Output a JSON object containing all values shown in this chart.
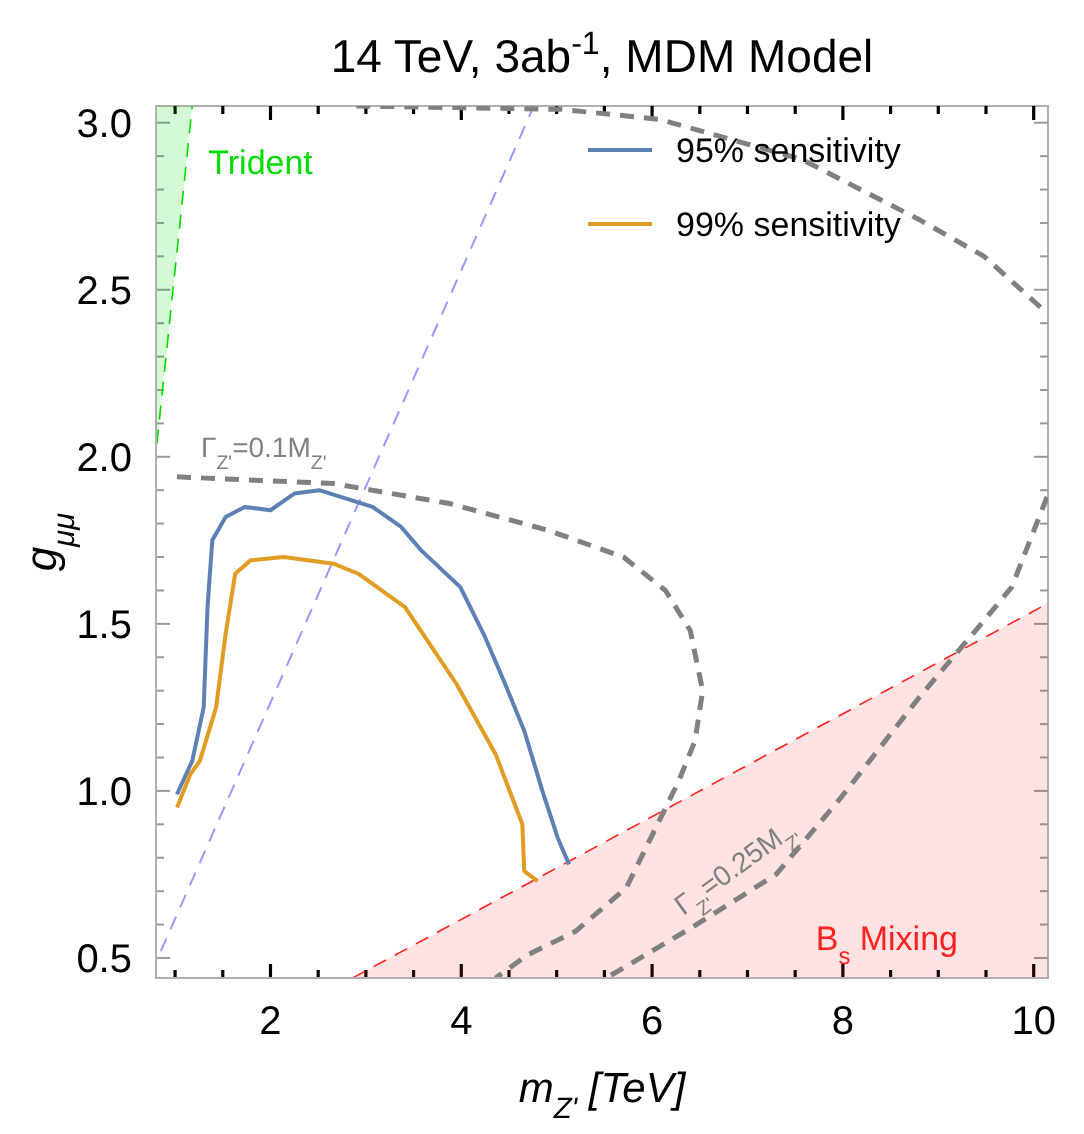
{
  "chart_data": {
    "type": "line",
    "title": "14 TeV, 3ab$^{-1}$, MDM Model",
    "xlabel": "m$_{Z'}$ [TeV]",
    "ylabel": "g$_{μμ}$",
    "xlim": [
      0.8,
      10.15
    ],
    "ylim": [
      0.44,
      3.05
    ],
    "xticks": [
      {
        "value": 1,
        "label": null
      },
      {
        "value": 1.5,
        "label": null
      },
      2,
      {
        "value": 2.5,
        "label": null
      },
      {
        "value": 3,
        "label": null
      },
      {
        "value": 3.5,
        "label": null
      },
      4,
      {
        "value": 4.5,
        "label": null
      },
      {
        "value": 5,
        "label": null
      },
      {
        "value": 5.5,
        "label": null
      },
      6,
      {
        "value": 6.5,
        "label": null
      },
      {
        "value": 7,
        "label": null
      },
      {
        "value": 7.5,
        "label": null
      },
      8,
      {
        "value": 8.5,
        "label": null
      },
      {
        "value": 9,
        "label": null
      },
      {
        "value": 9.5,
        "label": null
      },
      10
    ],
    "yticks": [
      0.5,
      {
        "value": 0.6,
        "label": null
      },
      {
        "value": 0.7,
        "label": null
      },
      {
        "value": 0.8,
        "label": null
      },
      {
        "value": 0.9,
        "label": null
      },
      {
        "value": 1,
        "label": "1.0"
      },
      {
        "value": 1.1,
        "label": null
      },
      {
        "value": 1.2,
        "label": null
      },
      {
        "value": 1.3,
        "label": null
      },
      {
        "value": 1.4,
        "label": null
      },
      1.5,
      {
        "value": 1.6,
        "label": null
      },
      {
        "value": 1.7,
        "label": null
      },
      {
        "value": 1.8,
        "label": null
      },
      {
        "value": 1.9,
        "label": null
      },
      {
        "value": 2,
        "label": "2.0"
      },
      {
        "value": 2.1,
        "label": null
      },
      {
        "value": 2.2,
        "label": null
      },
      {
        "value": 2.3,
        "label": null
      },
      {
        "value": 2.4,
        "label": null
      },
      2.5,
      {
        "value": 2.6,
        "label": null
      },
      {
        "value": 2.7,
        "label": null
      },
      {
        "value": 2.8,
        "label": null
      },
      {
        "value": 2.9,
        "label": null
      },
      {
        "value": 3,
        "label": "3.0"
      }
    ],
    "grid": false,
    "legend": "top right",
    "series": [
      {
        "name": "Trident",
        "color": "#00dd00",
        "line_style": "dashed",
        "x": [
          0.81,
          1.0,
          1.18
        ],
        "values": [
          2.04,
          2.56,
          3.05
        ],
        "lower": [
          2.04,
          2.56,
          3.05
        ],
        "upper": [
          3.05,
          3.05,
          3.05
        ]
      },
      {
        "name": "B$_{s}$ Mixing",
        "type": "area",
        "color": "#ff2020",
        "line_style": "dashed",
        "x": [
          2.86,
          10.14
        ],
        "values": [
          0.44,
          1.56
        ]
      },
      {
        "color": "#9999ff",
        "line_style": "dashed",
        "x": [
          0.85,
          4.76
        ],
        "values": [
          0.52,
          3.05
        ]
      },
      {
        "name": "Γ$_{Z'}$=0.1M$_{Z'}$",
        "color": "#808080",
        "line_style": "dashed",
        "x": [
          1.02,
          2.66,
          3.88,
          4.91,
          5.7,
          6.14,
          6.4,
          6.53,
          6.45,
          6.28,
          5.73,
          5.2,
          4.7,
          4.36
        ],
        "values": [
          1.94,
          1.92,
          1.86,
          1.78,
          1.7,
          1.6,
          1.48,
          1.3,
          1.15,
          1.03,
          0.71,
          0.58,
          0.51,
          0.44
        ]
      },
      {
        "color": "#808080",
        "line_style": "dashed",
        "x": [
          2.9,
          5.05,
          6.08,
          7.57,
          8.8,
          9.48,
          10.14
        ],
        "values": [
          3.05,
          3.04,
          3.01,
          2.89,
          2.71,
          2.6,
          2.43
        ]
      },
      {
        "name": "Γ$_{Z'}$=0.25M$_{Z'}$",
        "color": "#808080",
        "line_style": "dashed",
        "x": [
          10.14,
          9.77,
          9.48,
          8.8,
          7.98,
          7.3,
          6.41,
          5.52
        ],
        "values": [
          1.88,
          1.61,
          1.51,
          1.28,
          0.98,
          0.75,
          0.59,
          0.44
        ]
      },
      {
        "name": "95% sensitivity",
        "color": "#5e81b5",
        "line_style": "solid",
        "x": [
          1.02,
          1.18,
          1.3,
          1.34,
          1.39,
          1.53,
          1.73,
          2.0,
          2.25,
          2.51,
          3.07,
          3.37,
          3.58,
          3.99,
          4.25,
          4.46,
          4.66,
          4.85,
          5.01,
          5.13
        ],
        "values": [
          0.99,
          1.09,
          1.25,
          1.55,
          1.75,
          1.82,
          1.85,
          1.84,
          1.89,
          1.9,
          1.85,
          1.79,
          1.72,
          1.61,
          1.46,
          1.32,
          1.18,
          1.0,
          0.86,
          0.78
        ]
      },
      {
        "name": "99% sensitivity",
        "color": "#e19c24",
        "line_style": "solid",
        "x": [
          1.02,
          1.16,
          1.26,
          1.43,
          1.53,
          1.63,
          1.79,
          2.14,
          2.66,
          2.92,
          3.41,
          3.95,
          4.36,
          4.64,
          4.66,
          4.8
        ],
        "values": [
          0.95,
          1.05,
          1.09,
          1.25,
          1.47,
          1.65,
          1.69,
          1.7,
          1.68,
          1.65,
          1.55,
          1.32,
          1.11,
          0.9,
          0.76,
          0.73
        ]
      }
    ]
  }
}
